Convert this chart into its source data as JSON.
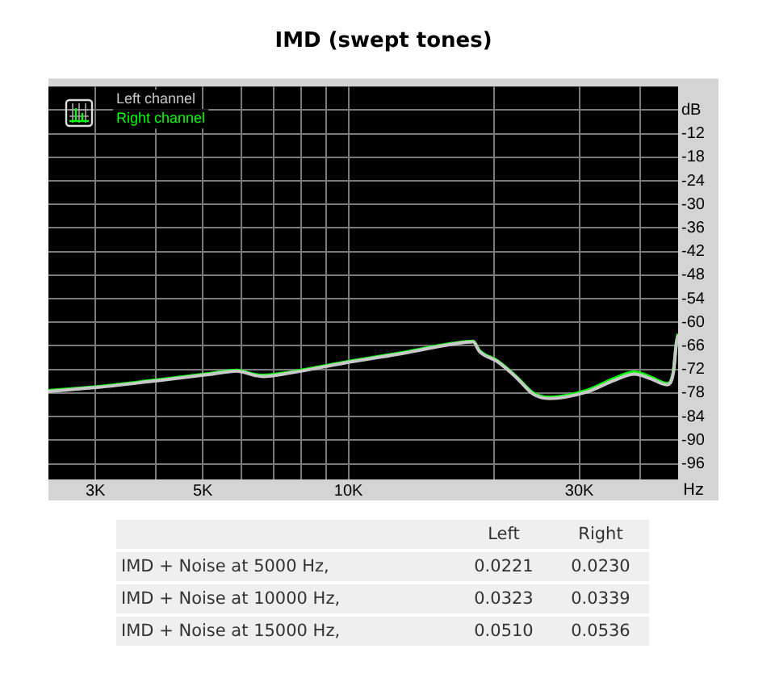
{
  "chart_data": {
    "type": "line",
    "title": "IMD (swept tones)",
    "xlabel": "Hz",
    "log": "x",
    "xlim": [
      2400,
      48000
    ],
    "ylim": [
      -100,
      0
    ],
    "xticks": [
      {
        "value": 3000,
        "label": "3K"
      },
      {
        "value": 4000,
        "label": null
      },
      {
        "value": 5000,
        "label": "5K"
      },
      {
        "value": 6000,
        "label": null
      },
      {
        "value": 7000,
        "label": null
      },
      {
        "value": 8000,
        "label": null
      },
      {
        "value": 9000,
        "label": null
      },
      {
        "value": 10000,
        "label": "10K"
      },
      {
        "value": 20000,
        "label": null
      },
      {
        "value": 30000,
        "label": "30K"
      },
      {
        "value": 40000,
        "label": null
      }
    ],
    "yticks": [
      {
        "value": -6,
        "label": "dB"
      },
      -12,
      -18,
      -24,
      -30,
      -36,
      -42,
      -48,
      -54,
      -60,
      -66,
      -72,
      -78,
      -84,
      -90,
      -96
    ],
    "grid": true,
    "legend": "top left",
    "marker": "none",
    "line_style": "solid",
    "x": [
      2400,
      3080,
      4000,
      5150,
      5880,
      6400,
      6650,
      7580,
      9770,
      12690,
      16370,
      18100,
      18650,
      20300,
      22250,
      24100,
      26000,
      31000,
      35400,
      39000,
      42200,
      45500,
      46900,
      47600,
      48000
    ],
    "series": [
      {
        "name": "Left channel",
        "color": "#c8c8c8",
        "values": [
          -77.6,
          -76.5,
          -74.9,
          -73.3,
          -72.4,
          -73.5,
          -73.8,
          -72.9,
          -70.4,
          -68.1,
          -65.6,
          -65.0,
          -67.4,
          -70.0,
          -74.1,
          -78.3,
          -79.4,
          -77.8,
          -74.8,
          -73.2,
          -74.4,
          -75.9,
          -73.0,
          -65.5,
          -63.2
        ]
      },
      {
        "name": "Right channel",
        "color": "#00ff00",
        "values": [
          -77.4,
          -76.3,
          -74.7,
          -73.1,
          -72.2,
          -73.3,
          -73.5,
          -72.7,
          -70.2,
          -67.9,
          -65.4,
          -64.8,
          -67.2,
          -69.8,
          -73.9,
          -78.0,
          -79.1,
          -77.4,
          -74.3,
          -72.7,
          -74.0,
          -75.6,
          -72.7,
          -65.2,
          -62.9
        ]
      }
    ],
    "annotations": [
      "Left",
      "Right",
      "IMD + Noise at 5000 Hz,",
      "0.0221",
      "0.0230",
      "IMD + Noise at 10000 Hz,",
      "0.0323",
      "0.0339",
      "IMD + Noise at 15000 Hz,",
      "0.0510",
      "0.0536"
    ]
  }
}
